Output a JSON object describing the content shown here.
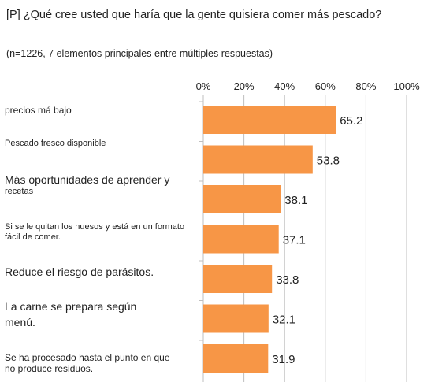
{
  "title": "[P] ¿Qué cree usted que haría que la gente quisiera comer más pescado?",
  "subtitle": "(n=1226, 7 elementos principales entre múltiples respuestas)",
  "chart_data": {
    "type": "bar",
    "orientation": "horizontal",
    "title": "[P] ¿Qué cree usted que haría que la gente quisiera comer más pescado?",
    "subtitle": "(n=1226, 7 elementos principales entre múltiples respuestas)",
    "categories": [
      [
        "precios má bajo"
      ],
      [
        "Pescado fresco disponible"
      ],
      [
        "Más oportunidades de aprender y",
        "recetas"
      ],
      [
        "Si se le quitan los huesos y está en un formato",
        "fácil de comer."
      ],
      [
        "Reduce el riesgo de parásitos."
      ],
      [
        "La carne se prepara según",
        "menú."
      ],
      [
        "Se ha procesado hasta el punto en que",
        "no produce residuos."
      ]
    ],
    "values": [
      65.2,
      53.8,
      38.1,
      37.1,
      33.8,
      32.1,
      31.9
    ],
    "value_labels": [
      "65.2",
      "53.8",
      "38.1",
      "37.1",
      "33.8",
      "32.1",
      "31.9"
    ],
    "xlim": [
      0,
      100
    ],
    "ticks": [
      0,
      20,
      40,
      60,
      80,
      100
    ],
    "tick_labels": [
      "0%",
      "20%",
      "40%",
      "60%",
      "80%",
      "100%"
    ],
    "axis_position": "top",
    "grid": true,
    "bar_color": "#F79646",
    "grid_color": "#BFBFBF"
  }
}
